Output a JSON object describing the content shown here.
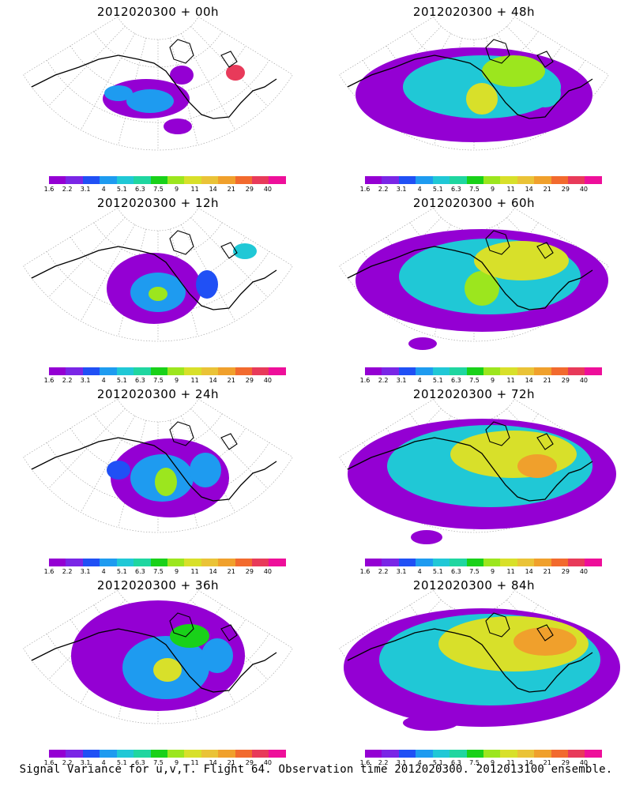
{
  "panels": [
    {
      "title": "2012020300  +  00h",
      "lead": 0
    },
    {
      "title": "2012020300  +  48h",
      "lead": 48
    },
    {
      "title": "2012020300  +  12h",
      "lead": 12
    },
    {
      "title": "2012020300  +  60h",
      "lead": 60
    },
    {
      "title": "2012020300  +  24h",
      "lead": 24
    },
    {
      "title": "2012020300  +  72h",
      "lead": 72
    },
    {
      "title": "2012020300  +  36h",
      "lead": 36
    },
    {
      "title": "2012020300  +  84h",
      "lead": 84
    }
  ],
  "colorbar": {
    "labels": [
      "1.6",
      "2.2",
      "3.1",
      "4",
      "5.1",
      "6.3",
      "7.5",
      "9",
      "11",
      "14",
      "21",
      "29",
      "40"
    ],
    "colors": [
      "#9400d3",
      "#7a26e6",
      "#2050f5",
      "#1e9bf0",
      "#20c8d6",
      "#1fd6a0",
      "#19d119",
      "#9ce61e",
      "#d8e02a",
      "#eac337",
      "#f0a02c",
      "#f26a2e",
      "#e83a5a",
      "#ee0f9a"
    ]
  },
  "footer": "Signal Variance for u,v,T. Flight 64. Observation time 2012020300. 2012013100 ensemble."
}
